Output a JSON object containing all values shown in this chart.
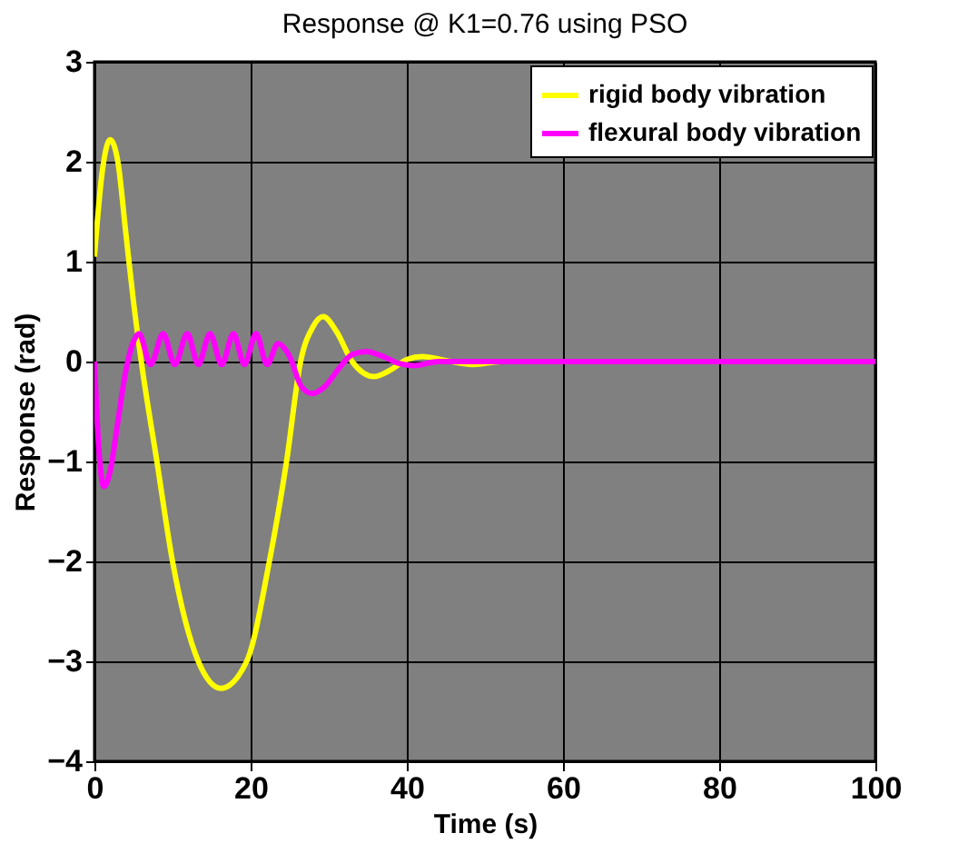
{
  "chart_data": {
    "type": "line",
    "title": "Response @ K1=0.76 using PSO",
    "xlabel": "Time (s)",
    "ylabel": "Response (rad)",
    "xlim": [
      0,
      100
    ],
    "xticks": [
      0,
      20,
      40,
      60,
      80,
      100
    ],
    "ylim": [
      -4,
      3
    ],
    "yticks": [
      -4,
      -3,
      -2,
      -1,
      0,
      1,
      2,
      3
    ],
    "grid": true,
    "legend": "top right",
    "line_style": "solid",
    "marker": "none",
    "series": [
      {
        "name": "rigid body vibration",
        "color": "#ffff00",
        "x": [
          0,
          1,
          2,
          3,
          4,
          5,
          6,
          8,
          10,
          13.3,
          16.2,
          19.5,
          22.4,
          24.6,
          26.4,
          28,
          29.3,
          31,
          33,
          35.8,
          38,
          40,
          42,
          45,
          48.6,
          52,
          100
        ],
        "values": [
          1.05,
          1.9,
          2.22,
          2.0,
          1.3,
          0.6,
          0,
          -1.0,
          -2.0,
          -3.0,
          -3.27,
          -3.0,
          -2.0,
          -1.0,
          0,
          0.35,
          0.45,
          0.3,
          0,
          -0.15,
          -0.08,
          0.02,
          0.05,
          0.01,
          -0.03,
          0,
          0
        ]
      },
      {
        "name": "flexural body vibration",
        "color": "#ff00ff",
        "x": [
          0,
          0.5,
          1.2,
          2,
          3,
          4,
          5,
          5.7,
          7.2,
          8.8,
          10.3,
          11.9,
          13.3,
          14.8,
          16.3,
          17.8,
          19.2,
          20.7,
          22.1,
          23.5,
          25,
          26.5,
          27.9,
          29.5,
          31.5,
          33,
          34.8,
          37,
          39,
          41,
          44,
          100
        ],
        "values": [
          0,
          -0.8,
          -1.25,
          -1.1,
          -0.6,
          -0.1,
          0.2,
          0.28,
          -0.03,
          0.28,
          -0.03,
          0.28,
          -0.03,
          0.28,
          -0.03,
          0.28,
          -0.03,
          0.28,
          -0.03,
          0.18,
          0.05,
          -0.25,
          -0.32,
          -0.25,
          -0.05,
          0.07,
          0.1,
          0.05,
          -0.02,
          -0.04,
          0,
          0
        ]
      }
    ]
  }
}
